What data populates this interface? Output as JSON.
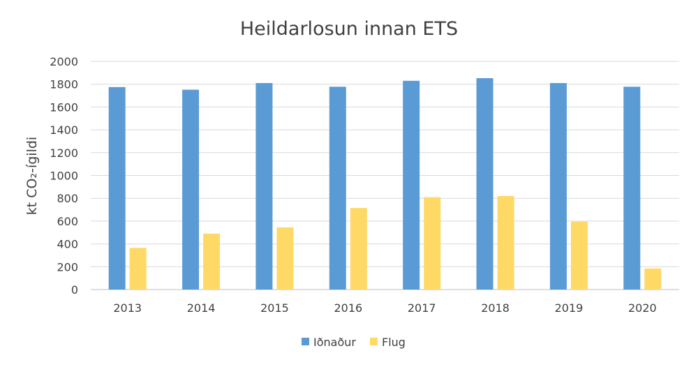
{
  "chart_data": {
    "type": "bar",
    "title": "Heildarlosun innan ETS",
    "ylabel": "kt CO₂-ígildi",
    "xlabel": "",
    "ylim": [
      0,
      2000
    ],
    "yticks": [
      0,
      200,
      400,
      600,
      800,
      1000,
      1200,
      1400,
      1600,
      1800,
      2000
    ],
    "categories": [
      "2013",
      "2014",
      "2015",
      "2016",
      "2017",
      "2018",
      "2019",
      "2020"
    ],
    "series": [
      {
        "name": "Iðnaður",
        "color": "#5b9bd5",
        "values": [
          1775,
          1752,
          1810,
          1778,
          1830,
          1853,
          1810,
          1778
        ]
      },
      {
        "name": "Flug",
        "color": "#ffd966",
        "values": [
          365,
          490,
          545,
          715,
          810,
          820,
          595,
          185
        ]
      }
    ],
    "grid": true,
    "legend": "bottom-center"
  }
}
